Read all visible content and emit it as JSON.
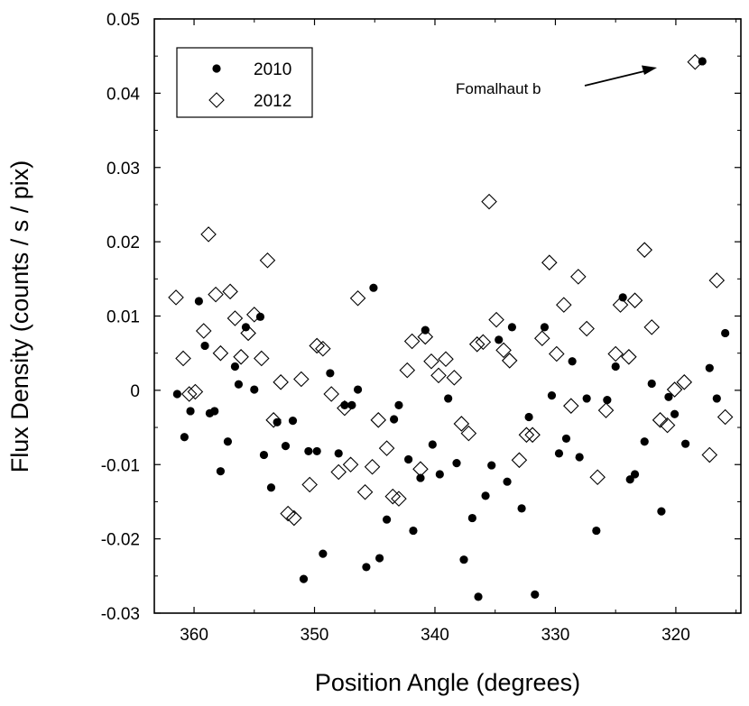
{
  "chart_data": {
    "type": "scatter",
    "title": "",
    "xlabel": "Position Angle (degrees)",
    "ylabel": "Flux Density (counts / s / pix)",
    "xlim": [
      363.3,
      314.6
    ],
    "ylim": [
      -0.03,
      0.05
    ],
    "x_reversed": true,
    "grid": false,
    "xticks": [
      360,
      350,
      340,
      330,
      320
    ],
    "xtick_labels": [
      "360",
      "350",
      "340",
      "330",
      "320"
    ],
    "yticks": [
      -0.03,
      -0.02,
      -0.01,
      0,
      0.01,
      0.02,
      0.03,
      0.04,
      0.05
    ],
    "ytick_labels": [
      "-0.03",
      "-0.02",
      "-0.01",
      "0",
      "0.01",
      "0.02",
      "0.03",
      "0.04",
      "0.05"
    ],
    "legend": {
      "placement": "top-left",
      "entries": [
        {
          "label": "2010",
          "marker": "filled-circle"
        },
        {
          "label": "2012",
          "marker": "open-diamond"
        }
      ]
    },
    "annotation": {
      "text": "Fomalhaut b",
      "target_series": "2012",
      "target_x": 318.4,
      "target_y": 0.0442
    },
    "series": [
      {
        "name": "2010",
        "marker": "filled-circle",
        "color": "#000000",
        "points": [
          [
            361.4,
            -0.0005
          ],
          [
            360.8,
            -0.0063
          ],
          [
            360.3,
            -0.0028
          ],
          [
            359.6,
            0.012
          ],
          [
            359.1,
            0.006
          ],
          [
            358.7,
            -0.0031
          ],
          [
            358.3,
            -0.0028
          ],
          [
            357.8,
            -0.0109
          ],
          [
            357.2,
            -0.0069
          ],
          [
            356.6,
            0.0032
          ],
          [
            356.3,
            0.0008
          ],
          [
            355.7,
            0.0085
          ],
          [
            355.0,
            0.0001
          ],
          [
            354.5,
            0.0099
          ],
          [
            354.2,
            -0.0087
          ],
          [
            353.6,
            -0.0131
          ],
          [
            353.1,
            -0.0043
          ],
          [
            352.4,
            -0.0075
          ],
          [
            351.8,
            -0.0041
          ],
          [
            350.9,
            -0.0254
          ],
          [
            350.5,
            -0.0082
          ],
          [
            349.8,
            -0.0082
          ],
          [
            349.3,
            -0.022
          ],
          [
            348.7,
            0.0023
          ],
          [
            348.0,
            -0.0085
          ],
          [
            347.5,
            -0.002
          ],
          [
            346.9,
            -0.002
          ],
          [
            346.4,
            0.0001
          ],
          [
            345.7,
            -0.0238
          ],
          [
            345.1,
            0.0138
          ],
          [
            344.6,
            -0.0226
          ],
          [
            344.0,
            -0.0174
          ],
          [
            343.4,
            -0.0039
          ],
          [
            343.0,
            -0.002
          ],
          [
            342.2,
            -0.0093
          ],
          [
            341.8,
            -0.0189
          ],
          [
            341.2,
            -0.0118
          ],
          [
            340.8,
            0.0081
          ],
          [
            340.2,
            -0.0073
          ],
          [
            339.6,
            -0.0113
          ],
          [
            338.9,
            -0.0011
          ],
          [
            338.2,
            -0.0098
          ],
          [
            337.6,
            -0.0228
          ],
          [
            336.9,
            -0.0172
          ],
          [
            336.4,
            -0.0278
          ],
          [
            335.8,
            -0.0142
          ],
          [
            335.3,
            -0.0101
          ],
          [
            334.7,
            0.0068
          ],
          [
            334.0,
            -0.0123
          ],
          [
            333.6,
            0.0085
          ],
          [
            332.8,
            -0.0159
          ],
          [
            332.2,
            -0.0036
          ],
          [
            331.7,
            -0.0275
          ],
          [
            330.9,
            0.0085
          ],
          [
            330.3,
            -0.0007
          ],
          [
            329.7,
            -0.0085
          ],
          [
            329.1,
            -0.0065
          ],
          [
            328.6,
            0.0039
          ],
          [
            328.0,
            -0.009
          ],
          [
            327.4,
            -0.0011
          ],
          [
            326.6,
            -0.0189
          ],
          [
            325.7,
            -0.0013
          ],
          [
            325.0,
            0.0032
          ],
          [
            324.4,
            0.0125
          ],
          [
            323.8,
            -0.012
          ],
          [
            323.4,
            -0.0113
          ],
          [
            322.6,
            -0.0069
          ],
          [
            322.0,
            0.0009
          ],
          [
            321.2,
            -0.0163
          ],
          [
            320.6,
            -0.0009
          ],
          [
            320.1,
            -0.0032
          ],
          [
            319.2,
            -0.0072
          ],
          [
            317.8,
            0.0443
          ],
          [
            317.2,
            0.003
          ],
          [
            316.6,
            -0.0011
          ],
          [
            315.9,
            0.0077
          ]
        ]
      },
      {
        "name": "2012",
        "marker": "open-diamond",
        "color": "#000000",
        "points": [
          [
            361.5,
            0.0125
          ],
          [
            360.9,
            0.0043
          ],
          [
            360.4,
            -0.0005
          ],
          [
            359.9,
            -0.0002
          ],
          [
            359.2,
            0.008
          ],
          [
            358.8,
            0.021
          ],
          [
            358.2,
            0.0129
          ],
          [
            357.8,
            0.005
          ],
          [
            357.0,
            0.0133
          ],
          [
            356.6,
            0.0097
          ],
          [
            356.1,
            0.0045
          ],
          [
            355.5,
            0.0077
          ],
          [
            355.0,
            0.0102
          ],
          [
            354.4,
            0.0043
          ],
          [
            353.9,
            0.0175
          ],
          [
            353.4,
            -0.004
          ],
          [
            352.8,
            0.0011
          ],
          [
            352.2,
            -0.0166
          ],
          [
            351.7,
            -0.0172
          ],
          [
            351.1,
            0.0015
          ],
          [
            350.4,
            -0.0127
          ],
          [
            349.8,
            0.006
          ],
          [
            349.3,
            0.0056
          ],
          [
            348.6,
            -0.0005
          ],
          [
            348.0,
            -0.011
          ],
          [
            347.5,
            -0.0024
          ],
          [
            347.0,
            -0.01
          ],
          [
            346.4,
            0.0124
          ],
          [
            345.8,
            -0.0137
          ],
          [
            345.2,
            -0.0103
          ],
          [
            344.7,
            -0.004
          ],
          [
            344.0,
            -0.0078
          ],
          [
            343.5,
            -0.0143
          ],
          [
            343.0,
            -0.0146
          ],
          [
            342.3,
            0.0027
          ],
          [
            341.9,
            0.0066
          ],
          [
            341.2,
            -0.0106
          ],
          [
            340.8,
            0.0072
          ],
          [
            340.3,
            0.0039
          ],
          [
            339.7,
            0.002
          ],
          [
            339.1,
            0.0042
          ],
          [
            338.4,
            0.0017
          ],
          [
            337.8,
            -0.0045
          ],
          [
            337.2,
            -0.0058
          ],
          [
            336.5,
            0.0062
          ],
          [
            336.0,
            0.0065
          ],
          [
            335.5,
            0.0254
          ],
          [
            334.9,
            0.0095
          ],
          [
            334.3,
            0.0054
          ],
          [
            333.8,
            0.004
          ],
          [
            333.0,
            -0.0094
          ],
          [
            332.4,
            -0.006
          ],
          [
            331.9,
            -0.006
          ],
          [
            331.1,
            0.007
          ],
          [
            330.5,
            0.0172
          ],
          [
            329.9,
            0.0049
          ],
          [
            329.3,
            0.0115
          ],
          [
            328.7,
            -0.0021
          ],
          [
            328.1,
            0.0153
          ],
          [
            327.4,
            0.0083
          ],
          [
            326.5,
            -0.0117
          ],
          [
            325.8,
            -0.0027
          ],
          [
            325.0,
            0.0049
          ],
          [
            324.6,
            0.0115
          ],
          [
            323.9,
            0.0045
          ],
          [
            323.4,
            0.0121
          ],
          [
            322.6,
            0.0189
          ],
          [
            322.0,
            0.0085
          ],
          [
            321.3,
            -0.004
          ],
          [
            320.7,
            -0.0047
          ],
          [
            320.1,
            0.0001
          ],
          [
            319.3,
            0.0011
          ],
          [
            318.4,
            0.0442
          ],
          [
            317.2,
            -0.0087
          ],
          [
            316.6,
            0.0148
          ],
          [
            315.9,
            -0.0036
          ]
        ]
      }
    ]
  }
}
